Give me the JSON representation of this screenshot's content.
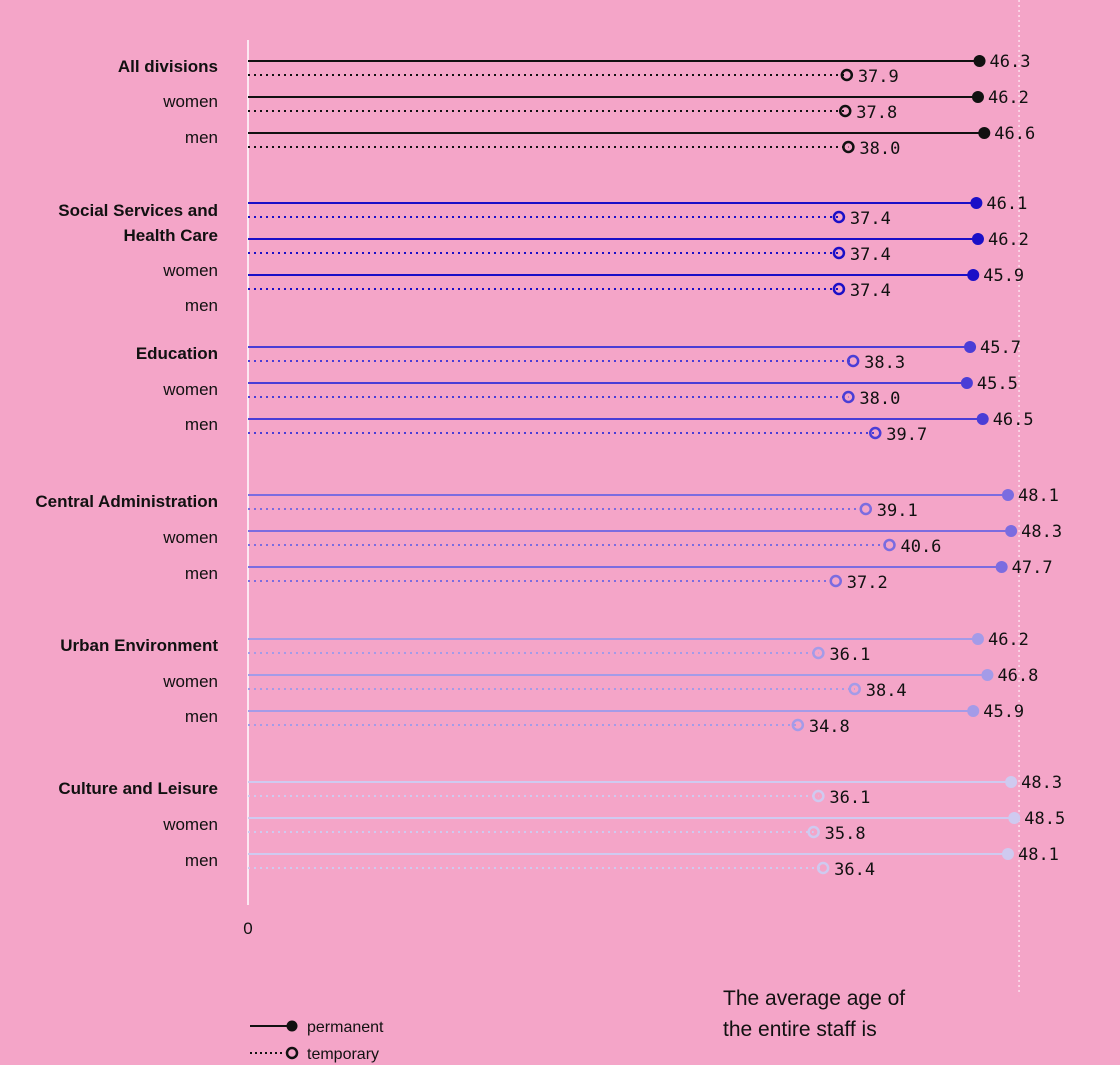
{
  "chart_data": {
    "type": "dumbbell",
    "x_tick_label": "0",
    "xlim": [
      0,
      50
    ],
    "reference_line_value": 48.8,
    "legend": {
      "permanent": "permanent",
      "temporary": "temporary"
    },
    "groups": [
      {
        "name": "All divisions",
        "color": "#111111",
        "rows": [
          {
            "label": "All divisions",
            "bold": true,
            "permanent": 46.3,
            "temporary": 37.9,
            "permanent_label": "46.3",
            "temporary_label": "37.9"
          },
          {
            "label": "women",
            "bold": false,
            "permanent": 46.2,
            "temporary": 37.8,
            "permanent_label": "46.2",
            "temporary_label": "37.8"
          },
          {
            "label": "men",
            "bold": false,
            "permanent": 46.6,
            "temporary": 38.0,
            "permanent_label": "46.6",
            "temporary_label": "38.0"
          }
        ]
      },
      {
        "name": "Social Services and Health Care",
        "color": "#1a0fc7",
        "rows": [
          {
            "label": "Social Services and",
            "bold": true,
            "permanent": 46.1,
            "temporary": 37.4,
            "permanent_label": "46.1",
            "temporary_label": "37.4"
          },
          {
            "label": "Health Care",
            "bold": true,
            "permanent": 46.2,
            "temporary": 37.4,
            "permanent_label": "46.2",
            "temporary_label": "37.4"
          },
          {
            "label": "women",
            "bold": false,
            "permanent": 45.9,
            "temporary": 37.4,
            "permanent_label": "45.9",
            "temporary_label": "37.4"
          },
          {
            "label": "men",
            "bold": false,
            "permanent": null,
            "temporary": null,
            "permanent_label": "",
            "temporary_label": ""
          }
        ]
      },
      {
        "name": "Education",
        "color": "#4a3dd6",
        "rows": [
          {
            "label": "Education",
            "bold": true,
            "permanent": 45.7,
            "temporary": 38.3,
            "permanent_label": "45.7",
            "temporary_label": "38.3"
          },
          {
            "label": "women",
            "bold": false,
            "permanent": 45.5,
            "temporary": 38.0,
            "permanent_label": "45.5",
            "temporary_label": "38.0"
          },
          {
            "label": "men",
            "bold": false,
            "permanent": 46.5,
            "temporary": 39.7,
            "permanent_label": "46.5",
            "temporary_label": "39.7"
          }
        ]
      },
      {
        "name": "Central Administration",
        "color": "#7b6ce0",
        "rows": [
          {
            "label": "Central Administration",
            "bold": true,
            "permanent": 48.1,
            "temporary": 39.1,
            "permanent_label": "48.1",
            "temporary_label": "39.1"
          },
          {
            "label": "women",
            "bold": false,
            "permanent": 48.3,
            "temporary": 40.6,
            "permanent_label": "48.3",
            "temporary_label": "40.6"
          },
          {
            "label": "men",
            "bold": false,
            "permanent": 47.7,
            "temporary": 37.2,
            "permanent_label": "47.7",
            "temporary_label": "37.2"
          }
        ]
      },
      {
        "name": "Urban Environment",
        "color": "#a49be8",
        "rows": [
          {
            "label": "Urban Environment",
            "bold": true,
            "permanent": 46.2,
            "temporary": 36.1,
            "permanent_label": "46.2",
            "temporary_label": "36.1"
          },
          {
            "label": "women",
            "bold": false,
            "permanent": 46.8,
            "temporary": 38.4,
            "permanent_label": "46.8",
            "temporary_label": "38.4"
          },
          {
            "label": "men",
            "bold": false,
            "permanent": 45.9,
            "temporary": 34.8,
            "permanent_label": "45.9",
            "temporary_label": "34.8"
          }
        ]
      },
      {
        "name": "Culture and Leisure",
        "color": "#cfcaf0",
        "rows": [
          {
            "label": "Culture and Leisure",
            "bold": true,
            "permanent": 48.3,
            "temporary": 36.1,
            "permanent_label": "48.3",
            "temporary_label": "36.1"
          },
          {
            "label": "women",
            "bold": false,
            "permanent": 48.5,
            "temporary": 35.8,
            "permanent_label": "48.5",
            "temporary_label": "35.8"
          },
          {
            "label": "men",
            "bold": false,
            "permanent": 48.1,
            "temporary": 36.4,
            "permanent_label": "48.1",
            "temporary_label": "36.4"
          }
        ]
      }
    ]
  },
  "note": {
    "line1": "The average age of",
    "line2": "the entire staff is",
    "big_value": ""
  }
}
